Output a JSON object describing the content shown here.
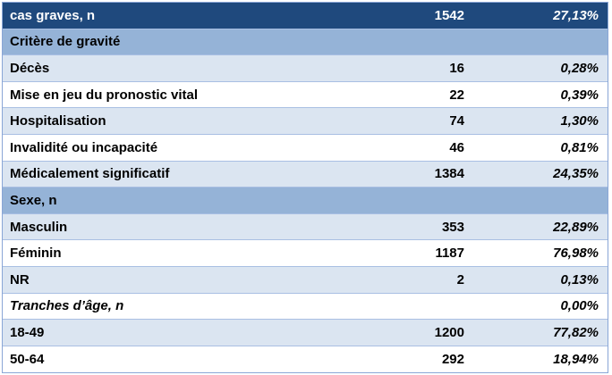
{
  "rows": [
    {
      "label": "cas graves, n",
      "n": "1542",
      "pct": "27,13%"
    },
    {
      "label": "Critère de gravité",
      "n": "",
      "pct": ""
    },
    {
      "label": "Décès",
      "n": "16",
      "pct": "0,28%"
    },
    {
      "label": "Mise en jeu du pronostic vital",
      "n": "22",
      "pct": "0,39%"
    },
    {
      "label": "Hospitalisation",
      "n": "74",
      "pct": "1,30%"
    },
    {
      "label": "Invalidité ou incapacité",
      "n": "46",
      "pct": "0,81%"
    },
    {
      "label": "Médicalement significatif",
      "n": "1384",
      "pct": "24,35%"
    },
    {
      "label": "Sexe, n",
      "n": "",
      "pct": ""
    },
    {
      "label": "Masculin",
      "n": "353",
      "pct": "22,89%"
    },
    {
      "label": "Féminin",
      "n": "1187",
      "pct": "76,98%"
    },
    {
      "label": "NR",
      "n": "2",
      "pct": "0,13%"
    },
    {
      "label": "Tranches d’âge, n",
      "n": "",
      "pct": "0,00%"
    },
    {
      "label": "18-49",
      "n": "1200",
      "pct": "77,82%"
    },
    {
      "label": "50-64",
      "n": "292",
      "pct": "18,94%"
    }
  ],
  "colors": {
    "header": "#1f497d",
    "section": "#95b3d7",
    "light": "#dbe5f1",
    "white": "#ffffff"
  }
}
